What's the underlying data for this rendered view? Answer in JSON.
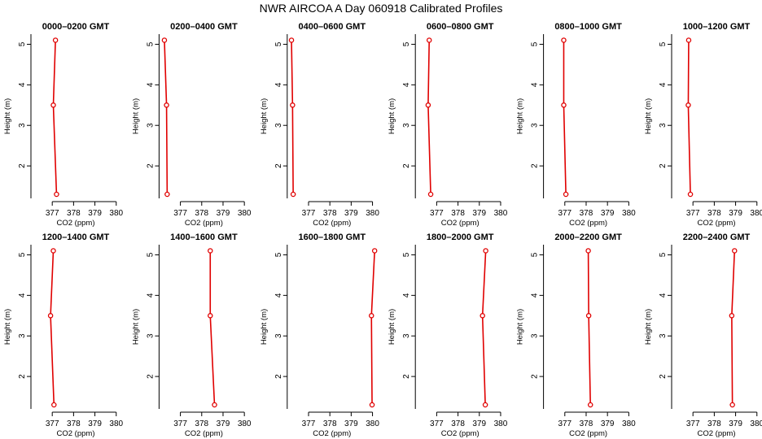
{
  "figure": {
    "title": "NWR AIRCOA A  Day 060918  Calibrated Profiles"
  },
  "chart_data": [
    {
      "type": "line",
      "title": "0000–0200 GMT",
      "xlabel": "CO2 (ppm)",
      "ylabel": "Height (m)",
      "xlim": [
        376,
        380.2
      ],
      "ylim": [
        1.2,
        5.25
      ],
      "xticks": [
        377,
        378,
        379,
        380
      ],
      "yticks": [
        2,
        3,
        4,
        5
      ],
      "grid": false,
      "series": [
        {
          "x": [
            377.15,
            377.05,
            377.2
          ],
          "y": [
            5.1,
            3.5,
            1.3
          ],
          "color": "#e00000"
        }
      ]
    },
    {
      "type": "line",
      "title": "0200–0400 GMT",
      "xlabel": "CO2 (ppm)",
      "ylabel": "Height (m)",
      "xlim": [
        376,
        380.2
      ],
      "ylim": [
        1.2,
        5.25
      ],
      "xticks": [
        377,
        378,
        379,
        380
      ],
      "yticks": [
        2,
        3,
        4,
        5
      ],
      "grid": false,
      "series": [
        {
          "x": [
            376.25,
            376.35,
            376.38
          ],
          "y": [
            5.1,
            3.5,
            1.3
          ],
          "color": "#e00000"
        }
      ]
    },
    {
      "type": "line",
      "title": "0400–0600 GMT",
      "xlabel": "CO2 (ppm)",
      "ylabel": "Height (m)",
      "xlim": [
        376,
        380.2
      ],
      "ylim": [
        1.2,
        5.25
      ],
      "xticks": [
        377,
        378,
        379,
        380
      ],
      "yticks": [
        2,
        3,
        4,
        5
      ],
      "grid": false,
      "series": [
        {
          "x": [
            376.2,
            376.25,
            376.28
          ],
          "y": [
            5.1,
            3.5,
            1.3
          ],
          "color": "#e00000"
        }
      ]
    },
    {
      "type": "line",
      "title": "0600–0800 GMT",
      "xlabel": "CO2 (ppm)",
      "ylabel": "Height (m)",
      "xlim": [
        376,
        380.2
      ],
      "ylim": [
        1.2,
        5.25
      ],
      "xticks": [
        377,
        378,
        379,
        380
      ],
      "yticks": [
        2,
        3,
        4,
        5
      ],
      "grid": false,
      "series": [
        {
          "x": [
            376.65,
            376.6,
            376.72
          ],
          "y": [
            5.1,
            3.5,
            1.3
          ],
          "color": "#e00000"
        }
      ]
    },
    {
      "type": "line",
      "title": "0800–1000 GMT",
      "xlabel": "CO2 (ppm)",
      "ylabel": "Height (m)",
      "xlim": [
        376,
        380.2
      ],
      "ylim": [
        1.2,
        5.25
      ],
      "xticks": [
        377,
        378,
        379,
        380
      ],
      "yticks": [
        2,
        3,
        4,
        5
      ],
      "grid": false,
      "series": [
        {
          "x": [
            376.95,
            376.95,
            377.05
          ],
          "y": [
            5.1,
            3.5,
            1.3
          ],
          "color": "#e00000"
        }
      ]
    },
    {
      "type": "line",
      "title": "1000–1200 GMT",
      "xlabel": "CO2 (ppm)",
      "ylabel": "Height (m)",
      "xlim": [
        376,
        380.2
      ],
      "ylim": [
        1.2,
        5.25
      ],
      "xticks": [
        377,
        378,
        379,
        380
      ],
      "yticks": [
        2,
        3,
        4,
        5
      ],
      "grid": false,
      "series": [
        {
          "x": [
            376.8,
            376.78,
            376.88
          ],
          "y": [
            5.1,
            3.5,
            1.3
          ],
          "color": "#e00000"
        }
      ]
    },
    {
      "type": "line",
      "title": "1200–1400 GMT",
      "xlabel": "CO2 (ppm)",
      "ylabel": "Height (m)",
      "xlim": [
        376,
        380.2
      ],
      "ylim": [
        1.2,
        5.25
      ],
      "xticks": [
        377,
        378,
        379,
        380
      ],
      "yticks": [
        2,
        3,
        4,
        5
      ],
      "grid": false,
      "series": [
        {
          "x": [
            377.05,
            376.92,
            377.08
          ],
          "y": [
            5.1,
            3.5,
            1.3
          ],
          "color": "#e00000"
        }
      ]
    },
    {
      "type": "line",
      "title": "1400–1600 GMT",
      "xlabel": "CO2 (ppm)",
      "ylabel": "Height (m)",
      "xlim": [
        376,
        380.2
      ],
      "ylim": [
        1.2,
        5.25
      ],
      "xticks": [
        377,
        378,
        379,
        380
      ],
      "yticks": [
        2,
        3,
        4,
        5
      ],
      "grid": false,
      "series": [
        {
          "x": [
            378.4,
            378.4,
            378.6
          ],
          "y": [
            5.1,
            3.5,
            1.3
          ],
          "color": "#e00000"
        }
      ]
    },
    {
      "type": "line",
      "title": "1600–1800 GMT",
      "xlabel": "CO2 (ppm)",
      "ylabel": "Height (m)",
      "xlim": [
        376,
        380.2
      ],
      "ylim": [
        1.2,
        5.25
      ],
      "xticks": [
        377,
        378,
        379,
        380
      ],
      "yticks": [
        2,
        3,
        4,
        5
      ],
      "grid": false,
      "series": [
        {
          "x": [
            380.1,
            379.95,
            379.98
          ],
          "y": [
            5.1,
            3.5,
            1.3
          ],
          "color": "#e00000"
        }
      ]
    },
    {
      "type": "line",
      "title": "1800–2000 GMT",
      "xlabel": "CO2 (ppm)",
      "ylabel": "Height (m)",
      "xlim": [
        376,
        380.2
      ],
      "ylim": [
        1.2,
        5.25
      ],
      "xticks": [
        377,
        378,
        379,
        380
      ],
      "yticks": [
        2,
        3,
        4,
        5
      ],
      "grid": false,
      "series": [
        {
          "x": [
            379.3,
            379.15,
            379.28
          ],
          "y": [
            5.1,
            3.5,
            1.3
          ],
          "color": "#e00000"
        }
      ]
    },
    {
      "type": "line",
      "title": "2000–2200 GMT",
      "xlabel": "CO2 (ppm)",
      "ylabel": "Height (m)",
      "xlim": [
        376,
        380.2
      ],
      "ylim": [
        1.2,
        5.25
      ],
      "xticks": [
        377,
        378,
        379,
        380
      ],
      "yticks": [
        2,
        3,
        4,
        5
      ],
      "grid": false,
      "series": [
        {
          "x": [
            378.1,
            378.12,
            378.2
          ],
          "y": [
            5.1,
            3.5,
            1.3
          ],
          "color": "#e00000"
        }
      ]
    },
    {
      "type": "line",
      "title": "2200–2400 GMT",
      "xlabel": "CO2 (ppm)",
      "ylabel": "Height (m)",
      "xlim": [
        376,
        380.2
      ],
      "ylim": [
        1.2,
        5.25
      ],
      "xticks": [
        377,
        378,
        379,
        380
      ],
      "yticks": [
        2,
        3,
        4,
        5
      ],
      "grid": false,
      "series": [
        {
          "x": [
            378.95,
            378.82,
            378.85
          ],
          "y": [
            5.1,
            3.5,
            1.3
          ],
          "color": "#e00000"
        }
      ]
    }
  ]
}
